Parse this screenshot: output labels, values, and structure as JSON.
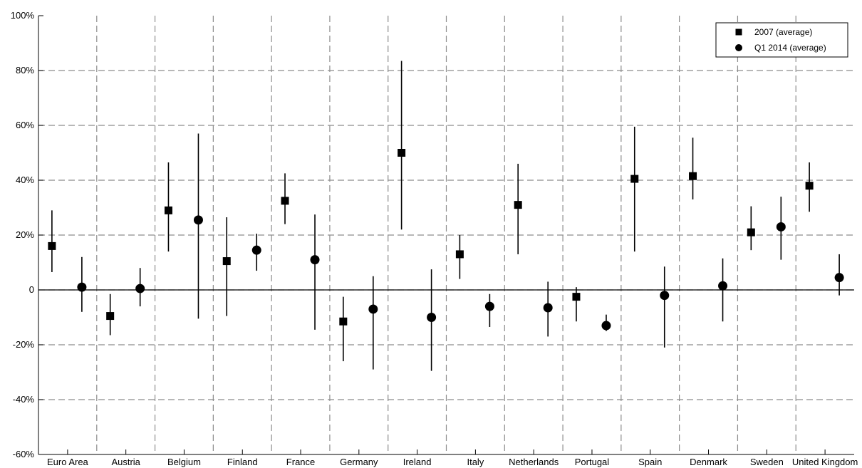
{
  "chart_data": {
    "type": "scatter",
    "categories": [
      "Euro Area",
      "Austria",
      "Belgium",
      "Finland",
      "France",
      "Germany",
      "Ireland",
      "Italy",
      "Netherlands",
      "Portugal",
      "Spain",
      "Denmark",
      "Sweden",
      "United Kingdom"
    ],
    "ylim": [
      -60,
      100
    ],
    "yticks": [
      -60,
      -40,
      -20,
      0,
      20,
      40,
      60,
      80,
      100
    ],
    "ytick_labels": [
      "-60%",
      "-40%",
      "-20%",
      "0",
      "20%",
      "40%",
      "60%",
      "80%",
      "100%"
    ],
    "grid": true,
    "legend_position": "top-right",
    "series": [
      {
        "name": "2007 (average)",
        "marker": "square",
        "color": "#000000",
        "values": [
          16,
          -9.5,
          29,
          10.5,
          32.5,
          -11.5,
          50,
          13,
          31,
          -2.5,
          40.5,
          41.5,
          21,
          38
        ],
        "low": [
          6.5,
          -16.5,
          14,
          -9.5,
          24,
          -26,
          22,
          4,
          13,
          -11.5,
          14,
          33,
          14.5,
          28.5
        ],
        "high": [
          29,
          -1.5,
          46.5,
          26.5,
          42.5,
          -2.5,
          83.5,
          20,
          46,
          1,
          59.5,
          55.5,
          30.5,
          46.5
        ]
      },
      {
        "name": "Q1 2014 (average)",
        "marker": "circle",
        "color": "#000000",
        "values": [
          1,
          0.5,
          25.5,
          14.5,
          11,
          -7,
          -10,
          -6,
          -6.5,
          -13,
          -2,
          1.5,
          23,
          4.5
        ],
        "low": [
          -8,
          -6,
          -10.5,
          7,
          -14.5,
          -29,
          -29.5,
          -13.5,
          -17,
          -15,
          -21,
          -11.5,
          11,
          -2
        ],
        "high": [
          12,
          8,
          57,
          20.5,
          27.5,
          5,
          7.5,
          -1.5,
          3,
          -9,
          8.5,
          11.5,
          34,
          13
        ]
      }
    ]
  }
}
